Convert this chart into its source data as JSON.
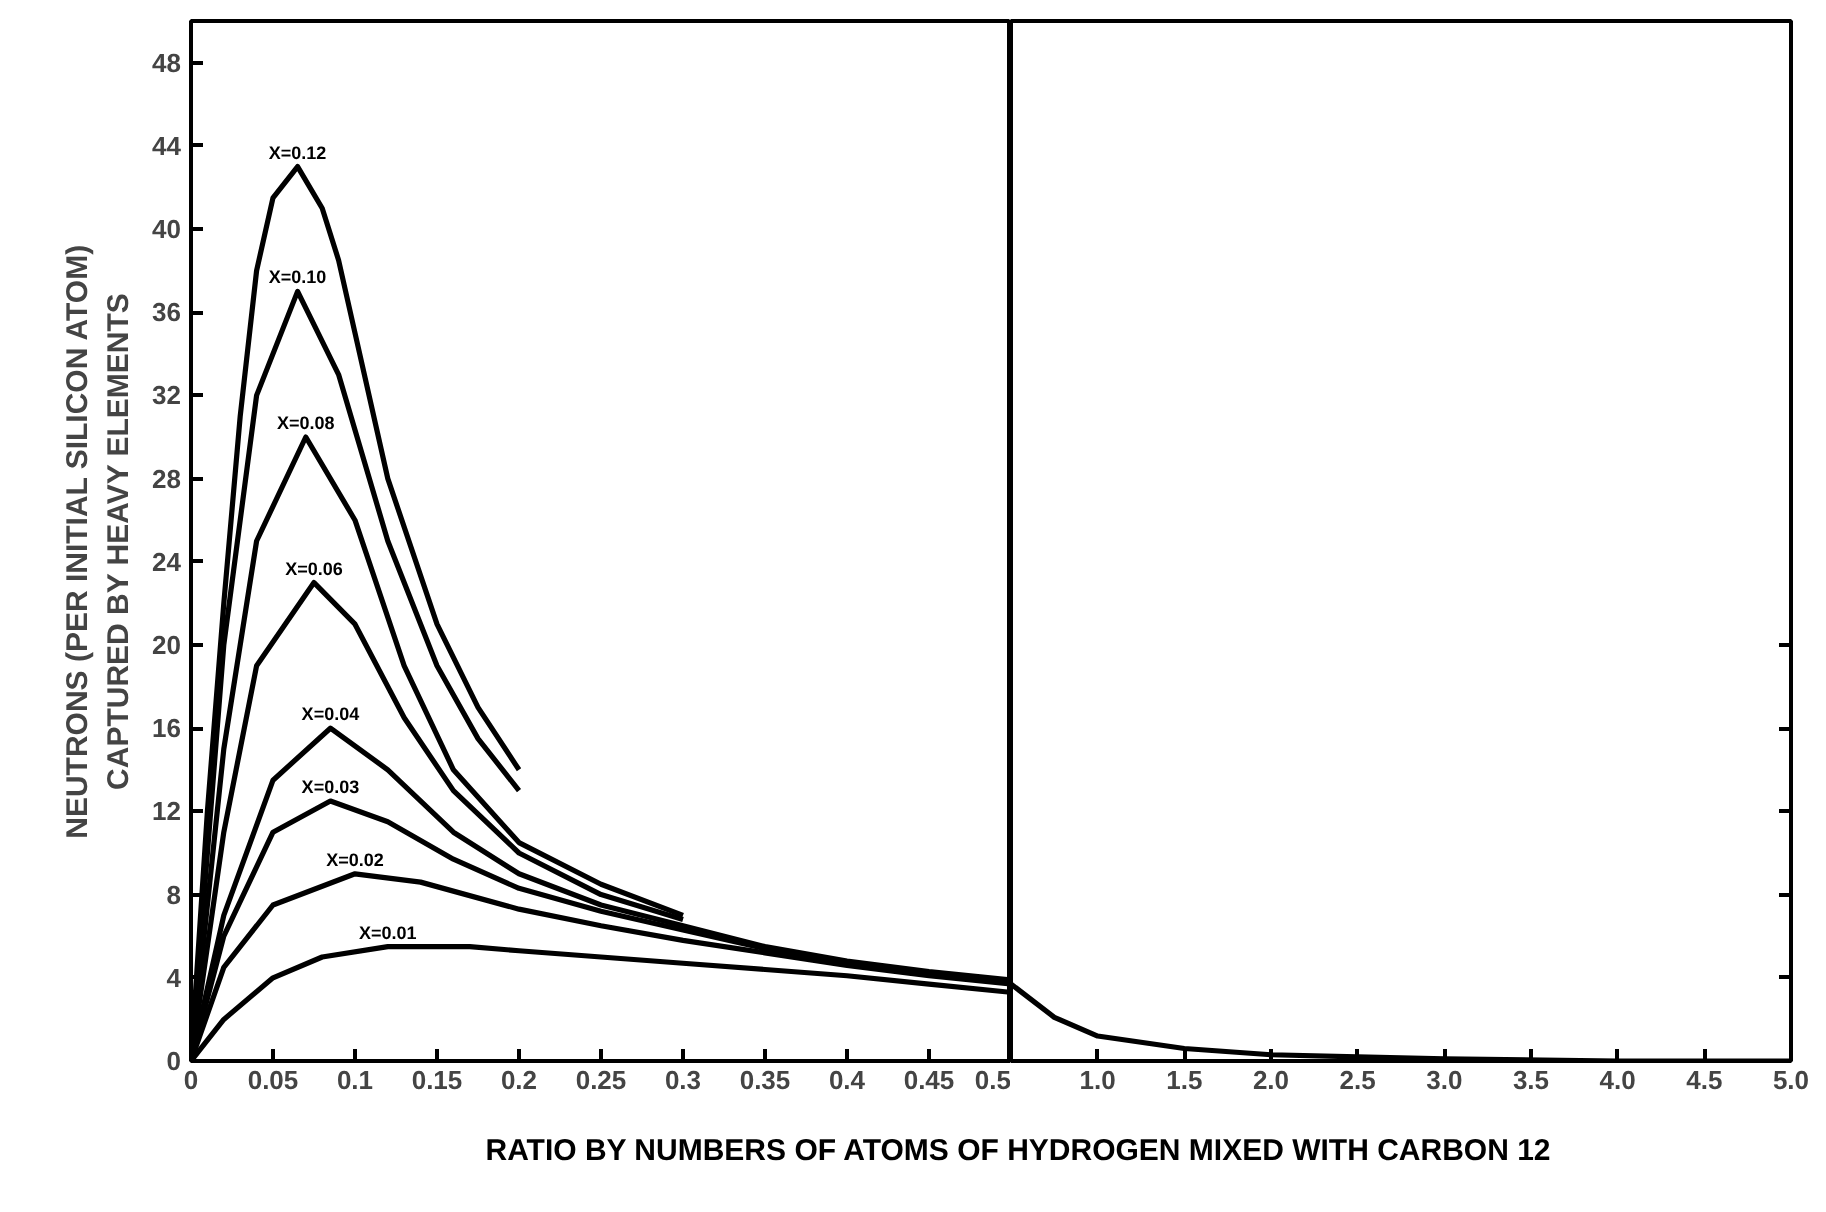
{
  "chart_data": [
    {
      "type": "line",
      "xlabel": "RATIO BY NUMBERS OF ATOMS OF HYDROGEN MIXED WITH CARBON 12",
      "ylabel": "NEUTRONS (PER INITIAL SILICON ATOM)\nCAPTURED BY HEAVY ELEMENTS",
      "xlim": [
        0,
        0.5
      ],
      "ylim": [
        0,
        50
      ],
      "xticks": [
        0,
        0.05,
        0.1,
        0.15,
        0.2,
        0.25,
        0.3,
        0.35,
        0.4,
        0.45,
        0.5
      ],
      "yticks": [
        0,
        4,
        8,
        12,
        16,
        20,
        24,
        28,
        32,
        36,
        40,
        44,
        48
      ],
      "grid": false,
      "legend": false,
      "marker": "none",
      "line_style": "solid",
      "series": [
        {
          "name": "X=0.12",
          "color": "#000000",
          "x": [
            0,
            0.01,
            0.02,
            0.03,
            0.04,
            0.05,
            0.065,
            0.08,
            0.09,
            0.1,
            0.12,
            0.15,
            0.175,
            0.2
          ],
          "values": [
            0,
            12,
            22,
            31,
            38,
            41.5,
            43,
            41,
            38.5,
            35,
            28,
            21,
            17,
            14
          ]
        },
        {
          "name": "X=0.10",
          "color": "#000000",
          "x": [
            0,
            0.02,
            0.04,
            0.065,
            0.09,
            0.12,
            0.15,
            0.175,
            0.2
          ],
          "values": [
            0,
            20,
            32,
            37,
            33,
            25,
            19,
            15.5,
            13
          ]
        },
        {
          "name": "X=0.08",
          "color": "#000000",
          "x": [
            0,
            0.02,
            0.04,
            0.07,
            0.1,
            0.13,
            0.16,
            0.2,
            0.25,
            0.3
          ],
          "values": [
            0,
            15,
            25,
            30,
            26,
            19,
            14,
            10.5,
            8.5,
            7
          ]
        },
        {
          "name": "X=0.06",
          "color": "#000000",
          "x": [
            0,
            0.02,
            0.04,
            0.075,
            0.1,
            0.13,
            0.16,
            0.2,
            0.25,
            0.3
          ],
          "values": [
            0,
            11,
            19,
            23,
            21,
            16.5,
            13,
            10,
            8,
            6.8
          ]
        },
        {
          "name": "X=0.04",
          "color": "#000000",
          "x": [
            0,
            0.02,
            0.05,
            0.085,
            0.12,
            0.16,
            0.2,
            0.25,
            0.3,
            0.35,
            0.4,
            0.45,
            0.5
          ],
          "values": [
            0,
            7,
            13.5,
            16,
            14,
            11,
            9,
            7.5,
            6.5,
            5.5,
            4.8,
            4.3,
            3.9
          ]
        },
        {
          "name": "X=0.03",
          "color": "#000000",
          "x": [
            0,
            0.02,
            0.05,
            0.085,
            0.12,
            0.16,
            0.2,
            0.25,
            0.3,
            0.35,
            0.4,
            0.45,
            0.5
          ],
          "values": [
            0,
            6,
            11,
            12.5,
            11.5,
            9.7,
            8.3,
            7.2,
            6.3,
            5.4,
            4.7,
            4.2,
            3.8
          ]
        },
        {
          "name": "X=0.02",
          "color": "#000000",
          "x": [
            0,
            0.02,
            0.05,
            0.1,
            0.14,
            0.2,
            0.25,
            0.3,
            0.35,
            0.4,
            0.45,
            0.5
          ],
          "values": [
            0,
            4.5,
            7.5,
            9,
            8.6,
            7.3,
            6.5,
            5.8,
            5.2,
            4.6,
            4.1,
            3.7
          ]
        },
        {
          "name": "X=0.01",
          "color": "#000000",
          "x": [
            0,
            0.02,
            0.05,
            0.08,
            0.12,
            0.17,
            0.2,
            0.25,
            0.3,
            0.35,
            0.4,
            0.45,
            0.5
          ],
          "values": [
            0,
            2,
            4,
            5,
            5.5,
            5.5,
            5.3,
            5,
            4.7,
            4.4,
            4.1,
            3.7,
            3.3
          ]
        }
      ]
    },
    {
      "type": "line",
      "xlim": [
        0.5,
        5.0
      ],
      "ylim": [
        0,
        50
      ],
      "xticks": [
        {
          "value": 1,
          "label": "1.0"
        },
        1.5,
        {
          "value": 2,
          "label": "2.0"
        },
        2.5,
        {
          "value": 3,
          "label": "3.0"
        },
        3.5,
        {
          "value": 4,
          "label": "4.0"
        },
        4.5,
        {
          "value": 5,
          "label": "5.0"
        }
      ],
      "yticks": [
        {
          "value": 4,
          "label": null
        },
        {
          "value": 8,
          "label": null
        },
        {
          "value": 12,
          "label": null
        },
        {
          "value": 16,
          "label": null
        },
        {
          "value": 20,
          "label": null
        }
      ],
      "tick_labels": "x",
      "grid": false,
      "legend": false,
      "marker": "none",
      "line_style": "solid",
      "series": [
        {
          "color": "#000000",
          "x": [
            0.5,
            0.75,
            1.0,
            1.5,
            2.0,
            2.5,
            3.0,
            4.0,
            5.0
          ],
          "values": [
            3.7,
            2.1,
            1.2,
            0.6,
            0.3,
            0.2,
            0.1,
            0,
            0
          ]
        }
      ]
    }
  ]
}
